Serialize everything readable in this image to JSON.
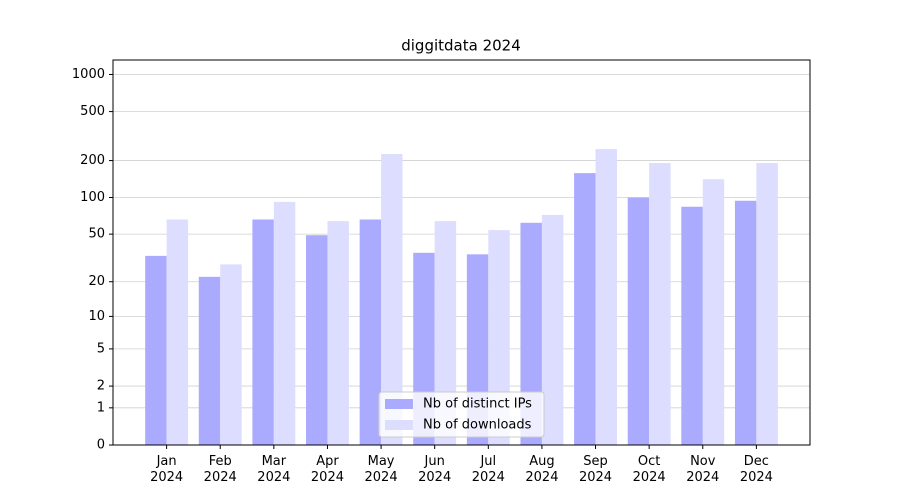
{
  "chart_data": {
    "type": "bar",
    "title": "diggitdata 2024",
    "categories": [
      "Jan\n2024",
      "Feb\n2024",
      "Mar\n2024",
      "Apr\n2024",
      "May\n2024",
      "Jun\n2024",
      "Jul\n2024",
      "Aug\n2024",
      "Sep\n2024",
      "Oct\n2024",
      "Nov\n2024",
      "Dec\n2024"
    ],
    "series": [
      {
        "name": "Nb of distinct IPs",
        "color": "#aaaaff",
        "values": [
          33,
          22,
          66,
          49,
          66,
          35,
          34,
          62,
          158,
          100,
          84,
          94
        ]
      },
      {
        "name": "Nb of downloads",
        "color": "#ddddff",
        "values": [
          66,
          28,
          92,
          64,
          226,
          64,
          54,
          72,
          248,
          191,
          141,
          191
        ]
      }
    ],
    "yscale": "log1p",
    "ylim": [
      0,
      1310
    ],
    "yticks": [
      0,
      1,
      2,
      5,
      10,
      20,
      50,
      100,
      200,
      500,
      1000
    ],
    "grid": true,
    "legend": "lower center"
  }
}
